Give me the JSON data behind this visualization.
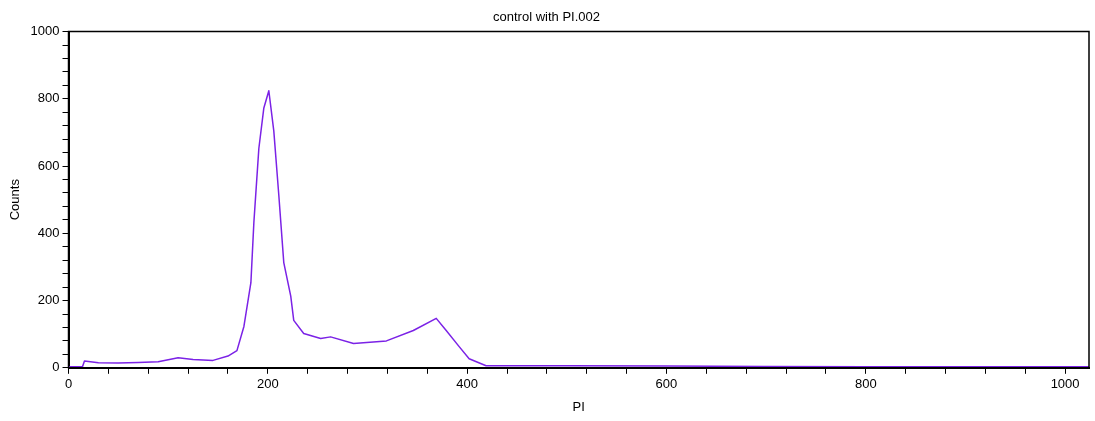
{
  "chart_data": {
    "type": "line",
    "title": "control with PI.002",
    "xlabel": "PI",
    "ylabel": "Counts",
    "xlim": [
      0,
      1024
    ],
    "ylim": [
      0,
      1000
    ],
    "xticks": [
      0,
      {
        "value": 40,
        "label": null
      },
      {
        "value": 80,
        "label": null
      },
      {
        "value": 120,
        "label": null
      },
      {
        "value": 160,
        "label": null
      },
      200,
      {
        "value": 240,
        "label": null
      },
      {
        "value": 280,
        "label": null
      },
      {
        "value": 320,
        "label": null
      },
      {
        "value": 360,
        "label": null
      },
      400,
      {
        "value": 440,
        "label": null
      },
      {
        "value": 480,
        "label": null
      },
      {
        "value": 520,
        "label": null
      },
      {
        "value": 560,
        "label": null
      },
      600,
      {
        "value": 640,
        "label": null
      },
      {
        "value": 680,
        "label": null
      },
      {
        "value": 720,
        "label": null
      },
      {
        "value": 760,
        "label": null
      },
      800,
      {
        "value": 840,
        "label": null
      },
      {
        "value": 880,
        "label": null
      },
      {
        "value": 920,
        "label": null
      },
      {
        "value": 960,
        "label": null
      },
      1000
    ],
    "yticks": [
      0,
      {
        "value": 40,
        "label": null
      },
      {
        "value": 80,
        "label": null
      },
      {
        "value": 120,
        "label": null
      },
      {
        "value": 160,
        "label": null
      },
      200,
      {
        "value": 240,
        "label": null
      },
      {
        "value": 280,
        "label": null
      },
      {
        "value": 320,
        "label": null
      },
      {
        "value": 360,
        "label": null
      },
      400,
      {
        "value": 440,
        "label": null
      },
      {
        "value": 480,
        "label": null
      },
      {
        "value": 520,
        "label": null
      },
      {
        "value": 560,
        "label": null
      },
      600,
      {
        "value": 640,
        "label": null
      },
      {
        "value": 680,
        "label": null
      },
      {
        "value": 720,
        "label": null
      },
      {
        "value": 760,
        "label": null
      },
      800,
      {
        "value": 840,
        "label": null
      },
      {
        "value": 880,
        "label": null
      },
      {
        "value": 920,
        "label": null
      },
      {
        "value": 960,
        "label": null
      },
      1000
    ],
    "grid": false,
    "legend": false,
    "marker": "none",
    "line_style": "solid",
    "series": [
      {
        "color": "#7b22e6",
        "x": [
          0,
          14,
          16,
          30,
          50,
          70,
          90,
          110,
          125,
          145,
          160,
          169,
          176,
          183,
          186,
          191,
          196,
          201,
          206,
          211,
          216,
          223,
          226,
          236,
          253,
          263,
          286,
          319,
          346,
          369,
          379,
          392,
          402,
          419,
          500,
          600,
          700,
          800,
          900,
          1024
        ],
        "values": [
          3,
          3,
          20,
          15,
          14,
          16,
          18,
          30,
          25,
          22,
          35,
          51,
          123,
          253,
          433,
          653,
          773,
          824,
          704,
          514,
          313,
          213,
          141,
          102,
          87,
          92,
          72,
          80,
          111,
          147,
          111,
          63,
          27,
          6,
          6,
          5,
          4,
          3,
          3,
          3
        ]
      }
    ]
  }
}
